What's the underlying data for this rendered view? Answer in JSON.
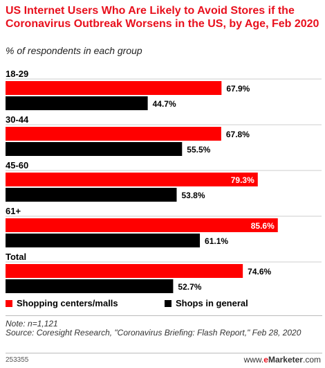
{
  "title": "US Internet Users Who Are Likely to Avoid Stores if the Coronavirus Outbreak Worsens in the US, by Age, Feb 2020",
  "subtitle": "% of respondents in each group",
  "note": "Note: n=1,121",
  "source": "Source: Coresight Research, \"Coronavirus Briefing: Flash Report,\" Feb 28, 2020",
  "chart_id": "253355",
  "brand": {
    "prefix": "www.",
    "e": "e",
    "name": "Marketer",
    "suffix": ".com"
  },
  "colors": {
    "series1": "#ff0000",
    "series2": "#000000",
    "title": "#e8101d"
  },
  "chart_data": {
    "type": "bar",
    "orientation": "horizontal",
    "categories": [
      "18-29",
      "30-44",
      "45-60",
      "61+",
      "Total"
    ],
    "series": [
      {
        "name": "Shopping centers/malls",
        "values": [
          67.9,
          67.8,
          79.3,
          85.6,
          74.6
        ],
        "labels": [
          "67.9%",
          "67.8%",
          "79.3%",
          "85.6%",
          "74.6%"
        ]
      },
      {
        "name": "Shops in general",
        "values": [
          44.7,
          55.5,
          53.8,
          61.1,
          52.7
        ],
        "labels": [
          "44.7%",
          "55.5%",
          "53.8%",
          "61.1%",
          "52.7%"
        ]
      }
    ],
    "xlim": [
      0,
      100
    ],
    "legend": "bottom",
    "grid": false
  }
}
